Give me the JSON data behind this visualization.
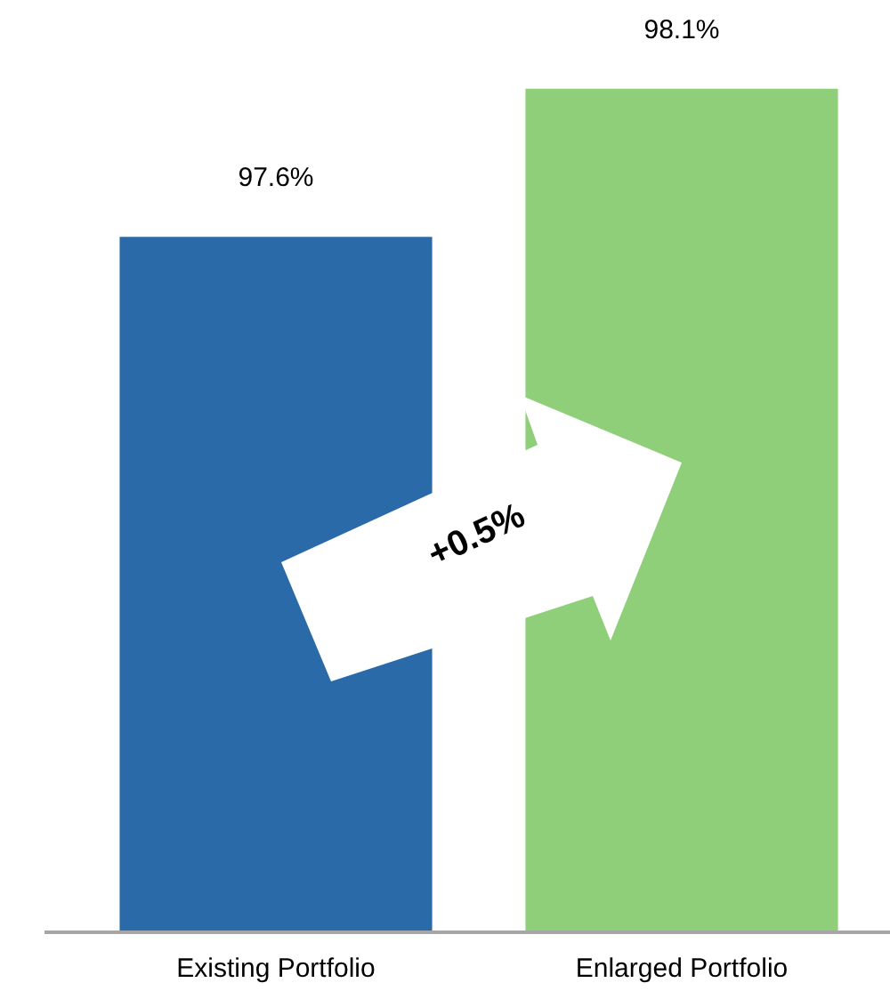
{
  "chart_data": {
    "type": "bar",
    "categories": [
      "Existing Portfolio",
      "Enlarged Portfolio"
    ],
    "values": [
      97.6,
      98.1
    ],
    "value_labels": [
      "97.6%",
      "98.1%"
    ],
    "colors": [
      "#2a6aa8",
      "#8fcf7a"
    ],
    "tick_labels": "x",
    "grid": false,
    "legend": false,
    "annotations": [
      "+0.5%"
    ]
  }
}
